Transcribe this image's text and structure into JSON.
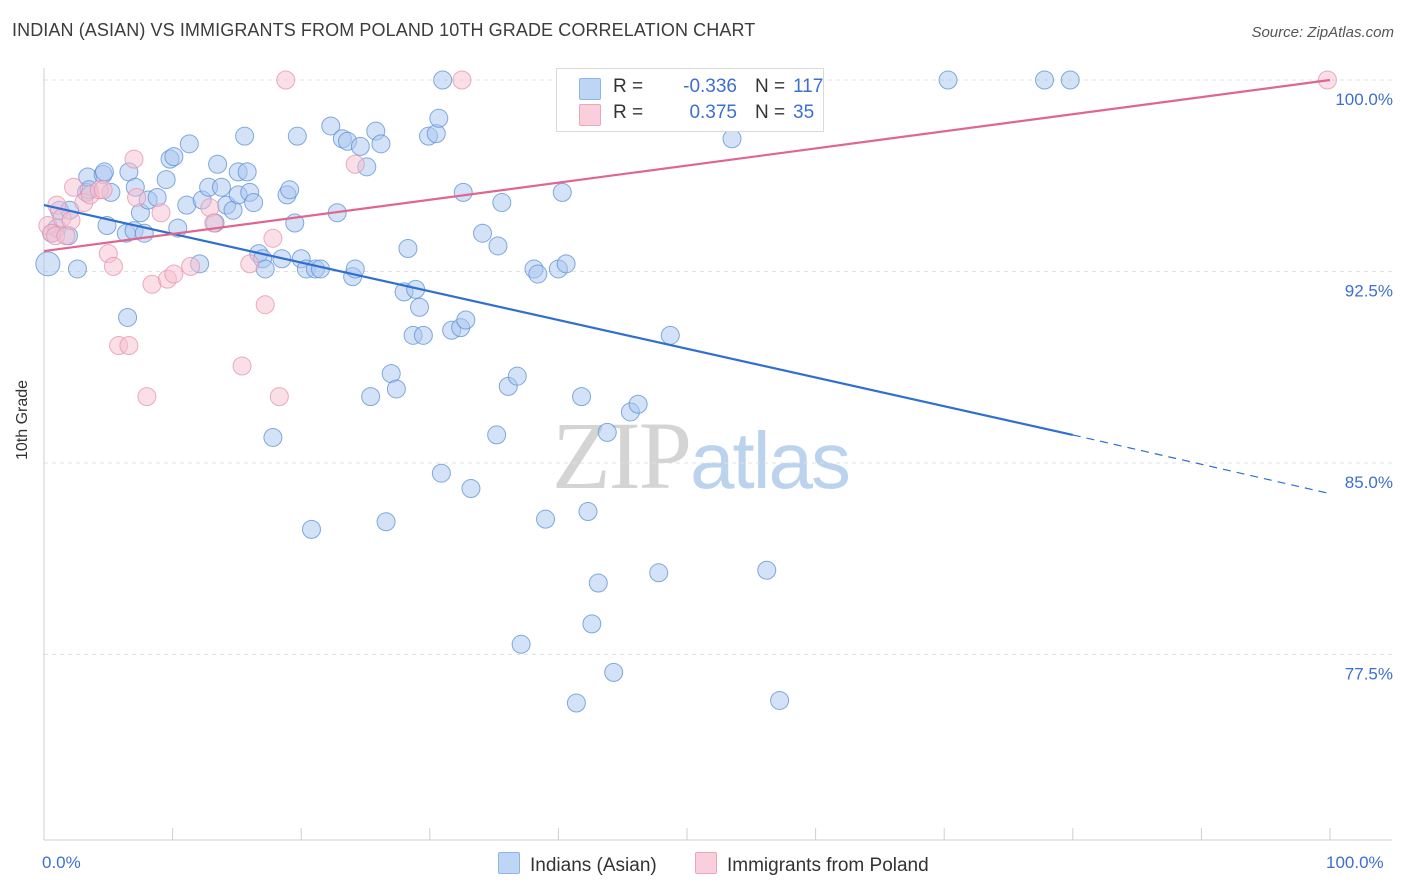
{
  "title": "INDIAN (ASIAN) VS IMMIGRANTS FROM POLAND 10TH GRADE CORRELATION CHART",
  "source": "Source: ZipAtlas.com",
  "watermark": {
    "zip": "ZIP",
    "atlas": "atlas"
  },
  "legend_top": {
    "r_label": "R =",
    "n_label": "N =",
    "series": [
      {
        "r": "-0.336",
        "n": "117",
        "color": "#a7c7f2",
        "border": "#6d9ee0"
      },
      {
        "r": "0.375",
        "n": "35",
        "color": "#f7bfd0",
        "border": "#e98fab"
      }
    ]
  },
  "colors": {
    "blue_fill": "#a9c6ef",
    "blue_stroke": "#5b8fd6",
    "blue_line": "#2f6fd0",
    "pink_fill": "#f5c0d0",
    "pink_stroke": "#e591ad",
    "pink_line": "#e0668f",
    "grid": "#e1e1e1",
    "axis_text": "#3d6fd1"
  },
  "chart_data": {
    "type": "scatter",
    "title": "INDIAN (ASIAN) VS IMMIGRANTS FROM POLAND 10TH GRADE CORRELATION CHART",
    "xlabel": "",
    "ylabel": "10th Grade",
    "xlim": [
      0,
      100
    ],
    "ylim": [
      70,
      100.8
    ],
    "x_tick_labels": [
      "0.0%",
      "100.0%"
    ],
    "y_ticks": [
      100.0,
      92.5,
      85.0,
      77.5
    ],
    "y_tick_labels": [
      "100.0%",
      "92.5%",
      "85.0%",
      "77.5%"
    ],
    "grid": true,
    "legend_position": "bottom",
    "series": [
      {
        "name": "Indians (Asian)",
        "r": -0.336,
        "n": 117,
        "trend": {
          "x0": 0,
          "y0": 95.1,
          "x1": 80,
          "y1": 86.1,
          "dash_to_x": 100,
          "dash_to_y": 83.8
        },
        "points": [
          [
            0.3,
            92.8
          ],
          [
            0.6,
            94.0
          ],
          [
            1.0,
            94.2
          ],
          [
            1.2,
            94.9
          ],
          [
            1.9,
            93.9
          ],
          [
            2.0,
            94.9
          ],
          [
            2.6,
            92.6
          ],
          [
            3.3,
            95.6
          ],
          [
            3.4,
            96.2
          ],
          [
            3.5,
            95.7
          ],
          [
            4.6,
            96.3
          ],
          [
            4.7,
            96.4
          ],
          [
            4.9,
            94.3
          ],
          [
            5.2,
            95.6
          ],
          [
            6.4,
            94.0
          ],
          [
            6.5,
            90.7
          ],
          [
            6.6,
            96.4
          ],
          [
            7.0,
            94.1
          ],
          [
            7.1,
            95.8
          ],
          [
            7.5,
            94.8
          ],
          [
            7.8,
            94.0
          ],
          [
            8.1,
            95.3
          ],
          [
            8.8,
            95.4
          ],
          [
            9.5,
            96.1
          ],
          [
            9.8,
            96.9
          ],
          [
            10.1,
            97.0
          ],
          [
            10.4,
            94.2
          ],
          [
            11.1,
            95.1
          ],
          [
            11.3,
            97.5
          ],
          [
            12.1,
            92.8
          ],
          [
            12.3,
            95.3
          ],
          [
            12.8,
            95.8
          ],
          [
            13.3,
            94.4
          ],
          [
            13.5,
            96.7
          ],
          [
            13.8,
            95.8
          ],
          [
            14.2,
            95.1
          ],
          [
            14.7,
            94.9
          ],
          [
            15.1,
            96.4
          ],
          [
            15.1,
            95.5
          ],
          [
            15.6,
            97.8
          ],
          [
            15.8,
            96.4
          ],
          [
            16.0,
            95.6
          ],
          [
            16.3,
            95.2
          ],
          [
            16.7,
            93.2
          ],
          [
            17.0,
            93.0
          ],
          [
            17.2,
            92.6
          ],
          [
            17.8,
            86.0
          ],
          [
            18.5,
            93.0
          ],
          [
            18.9,
            95.5
          ],
          [
            19.1,
            95.7
          ],
          [
            19.5,
            94.4
          ],
          [
            19.7,
            97.8
          ],
          [
            20.0,
            93.0
          ],
          [
            20.4,
            92.6
          ],
          [
            20.8,
            82.4
          ],
          [
            21.1,
            92.6
          ],
          [
            21.5,
            92.6
          ],
          [
            22.3,
            98.2
          ],
          [
            22.8,
            94.8
          ],
          [
            23.2,
            97.7
          ],
          [
            23.6,
            97.6
          ],
          [
            24.0,
            92.3
          ],
          [
            24.2,
            92.6
          ],
          [
            24.6,
            97.4
          ],
          [
            25.1,
            96.6
          ],
          [
            25.4,
            87.6
          ],
          [
            25.8,
            98.0
          ],
          [
            26.2,
            97.5
          ],
          [
            26.6,
            82.7
          ],
          [
            27.0,
            88.5
          ],
          [
            27.4,
            87.9
          ],
          [
            28.0,
            91.7
          ],
          [
            28.3,
            93.4
          ],
          [
            28.7,
            90.0
          ],
          [
            28.9,
            91.8
          ],
          [
            29.2,
            91.1
          ],
          [
            29.5,
            90.0
          ],
          [
            29.9,
            97.8
          ],
          [
            30.5,
            97.9
          ],
          [
            30.7,
            98.5
          ],
          [
            30.9,
            84.6
          ],
          [
            31.0,
            100.0
          ],
          [
            31.7,
            90.2
          ],
          [
            32.4,
            90.3
          ],
          [
            32.6,
            95.6
          ],
          [
            32.8,
            90.6
          ],
          [
            33.2,
            84.0
          ],
          [
            34.1,
            94.0
          ],
          [
            35.2,
            86.1
          ],
          [
            35.3,
            93.5
          ],
          [
            35.6,
            95.2
          ],
          [
            36.1,
            88.0
          ],
          [
            36.8,
            88.4
          ],
          [
            37.1,
            77.9
          ],
          [
            38.1,
            92.6
          ],
          [
            38.4,
            92.4
          ],
          [
            39.0,
            82.8
          ],
          [
            40.0,
            92.6
          ],
          [
            40.3,
            95.6
          ],
          [
            40.6,
            92.8
          ],
          [
            41.4,
            75.6
          ],
          [
            41.8,
            87.6
          ],
          [
            42.3,
            83.1
          ],
          [
            42.6,
            78.7
          ],
          [
            43.1,
            80.3
          ],
          [
            43.6,
            100.0
          ],
          [
            43.8,
            86.2
          ],
          [
            44.3,
            76.8
          ],
          [
            45.6,
            87.0
          ],
          [
            46.2,
            87.3
          ],
          [
            47.8,
            80.7
          ],
          [
            48.7,
            90.0
          ],
          [
            53.5,
            97.7
          ],
          [
            56.2,
            80.8
          ],
          [
            57.2,
            75.7
          ],
          [
            70.3,
            100.0
          ],
          [
            77.8,
            100.0
          ],
          [
            79.8,
            100.0
          ]
        ]
      },
      {
        "name": "Immigrants from Poland",
        "r": 0.375,
        "n": 35,
        "trend": {
          "x0": 0,
          "y0": 93.3,
          "x1": 100,
          "y1": 100.0
        },
        "points": [
          [
            0.3,
            94.3
          ],
          [
            0.6,
            94.0
          ],
          [
            0.9,
            93.9
          ],
          [
            1.0,
            95.1
          ],
          [
            1.4,
            94.6
          ],
          [
            1.7,
            93.9
          ],
          [
            2.1,
            94.5
          ],
          [
            2.3,
            95.8
          ],
          [
            3.1,
            95.2
          ],
          [
            3.6,
            95.5
          ],
          [
            4.3,
            95.7
          ],
          [
            4.6,
            95.7
          ],
          [
            5.0,
            93.2
          ],
          [
            5.4,
            92.7
          ],
          [
            5.8,
            89.6
          ],
          [
            6.6,
            89.6
          ],
          [
            7.0,
            96.9
          ],
          [
            7.2,
            95.4
          ],
          [
            8.0,
            87.6
          ],
          [
            8.4,
            92.0
          ],
          [
            9.1,
            94.8
          ],
          [
            9.6,
            92.2
          ],
          [
            10.1,
            92.4
          ],
          [
            11.4,
            92.7
          ],
          [
            12.9,
            95.0
          ],
          [
            13.2,
            94.4
          ],
          [
            15.4,
            88.8
          ],
          [
            16.0,
            92.8
          ],
          [
            17.2,
            91.2
          ],
          [
            17.8,
            93.8
          ],
          [
            18.3,
            87.6
          ],
          [
            18.8,
            100.0
          ],
          [
            24.2,
            96.7
          ],
          [
            32.5,
            100.0
          ],
          [
            99.8,
            100.0
          ]
        ]
      }
    ]
  }
}
